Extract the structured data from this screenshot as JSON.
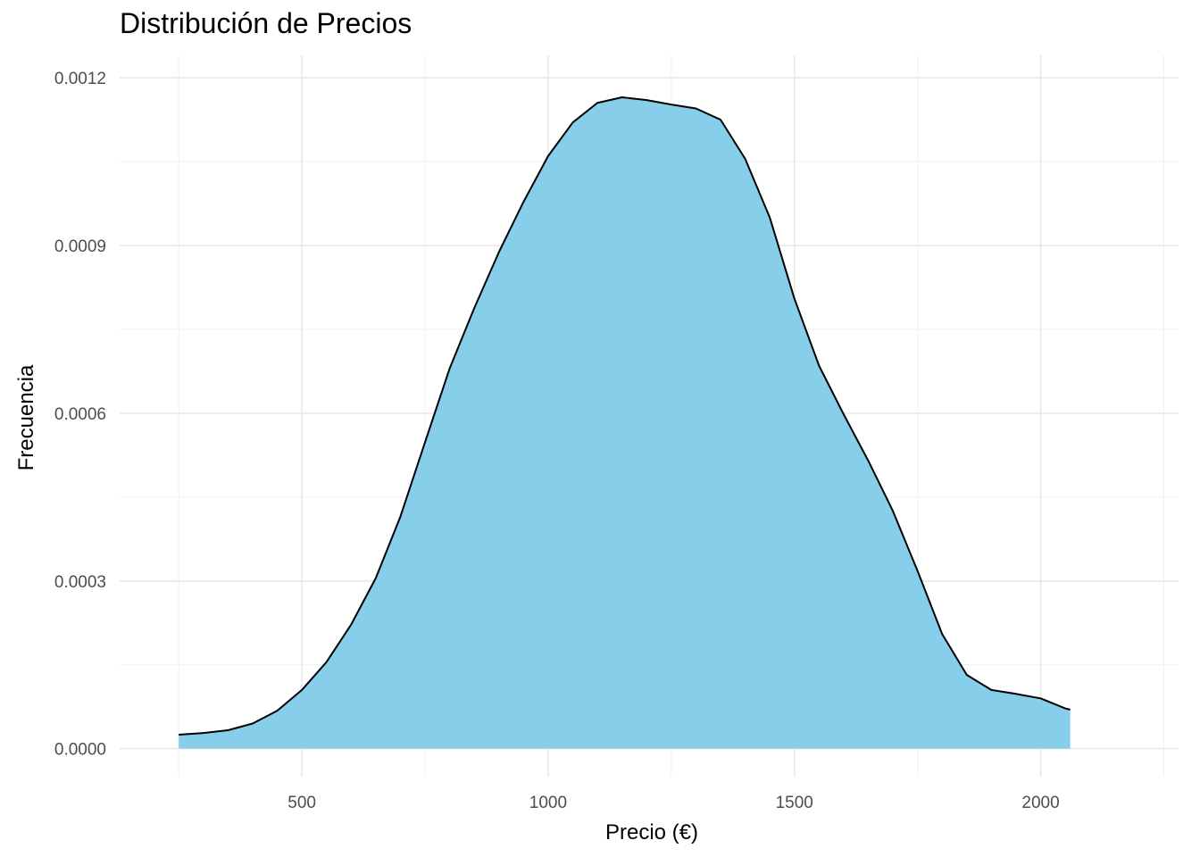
{
  "chart_data": {
    "type": "area",
    "title": "Distribución de Precios",
    "xlabel": "Precio (€)",
    "ylabel": "Frecuencia",
    "xlim": [
      130,
      2280
    ],
    "ylim": [
      -5e-05,
      0.00124
    ],
    "x_ticks": [
      500,
      1000,
      1500,
      2000
    ],
    "x_tick_labels": [
      "500",
      "1000",
      "1500",
      "2000"
    ],
    "y_ticks": [
      0.0,
      0.0003,
      0.0006,
      0.0009,
      0.0012
    ],
    "y_tick_labels": [
      "0.0000",
      "0.0003",
      "0.0006",
      "0.0009",
      "0.0012"
    ],
    "grid": true,
    "legend": "none",
    "fill_color": "#87CEEB",
    "line_color": "#000000",
    "series": [
      {
        "x": [
          250,
          300,
          350,
          400,
          450,
          500,
          550,
          600,
          650,
          700,
          750,
          800,
          850,
          900,
          950,
          1000,
          1050,
          1100,
          1150,
          1200,
          1250,
          1300,
          1350,
          1400,
          1450,
          1500,
          1550,
          1600,
          1650,
          1700,
          1750,
          1800,
          1850,
          1900,
          1950,
          2000,
          2050,
          2060
        ],
        "y": [
          2.5e-05,
          2.8e-05,
          3.3e-05,
          4.5e-05,
          6.8e-05,
          0.000105,
          0.000155,
          0.000222,
          0.000305,
          0.000415,
          0.000548,
          0.00068,
          0.000788,
          0.000888,
          0.000978,
          0.00106,
          0.00112,
          0.001155,
          0.001165,
          0.00116,
          0.001152,
          0.001145,
          0.001125,
          0.001055,
          0.00095,
          0.000805,
          0.000685,
          0.000598,
          0.000515,
          0.000425,
          0.000318,
          0.000205,
          0.000132,
          0.000105,
          9.8e-05,
          9e-05,
          7.2e-05,
          7e-05
        ]
      }
    ]
  }
}
